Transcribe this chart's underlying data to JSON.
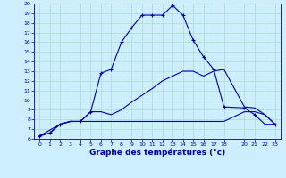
{
  "background_color": "#cceeff",
  "grid_color": "#aaddcc",
  "line_color": "#0000aa",
  "x_label": "Graphe des températures (°c)",
  "xlim": [
    -0.5,
    23.5
  ],
  "ylim": [
    6,
    20
  ],
  "yticks": [
    6,
    7,
    8,
    9,
    10,
    11,
    12,
    13,
    14,
    15,
    16,
    17,
    18,
    19,
    20
  ],
  "xticks": [
    0,
    1,
    2,
    3,
    4,
    5,
    6,
    7,
    8,
    9,
    10,
    11,
    12,
    13,
    14,
    15,
    16,
    17,
    18,
    20,
    21,
    22,
    23
  ],
  "line1_x": [
    0,
    1,
    2,
    3,
    4,
    5,
    6,
    7,
    8,
    9,
    10,
    11,
    12,
    13,
    14,
    15,
    16,
    17,
    18,
    20,
    21,
    22,
    23
  ],
  "line1_y": [
    6.3,
    6.6,
    7.5,
    7.8,
    7.8,
    8.8,
    12.8,
    13.2,
    16.0,
    17.5,
    18.8,
    18.8,
    18.8,
    19.8,
    18.8,
    16.2,
    14.5,
    13.2,
    9.3,
    9.2,
    8.5,
    7.5,
    7.5
  ],
  "line2_x": [
    0,
    1,
    2,
    3,
    4,
    5,
    6,
    7,
    8,
    9,
    10,
    11,
    12,
    13,
    14,
    15,
    16,
    17,
    18,
    20,
    21,
    22,
    23
  ],
  "line2_y": [
    6.3,
    6.6,
    7.5,
    7.8,
    7.8,
    8.8,
    8.8,
    8.5,
    9.0,
    9.8,
    10.5,
    11.2,
    12.0,
    12.5,
    13.0,
    13.0,
    12.5,
    13.0,
    13.2,
    9.3,
    9.2,
    8.5,
    7.5
  ],
  "line3_x": [
    0,
    2,
    3,
    4,
    5,
    6,
    7,
    8,
    9,
    10,
    11,
    12,
    13,
    14,
    15,
    16,
    17,
    18,
    20,
    21,
    22,
    23
  ],
  "line3_y": [
    6.3,
    7.5,
    7.8,
    7.8,
    7.8,
    7.8,
    7.8,
    7.8,
    7.8,
    7.8,
    7.8,
    7.8,
    7.8,
    7.8,
    7.8,
    7.8,
    7.8,
    7.8,
    8.8,
    8.8,
    8.5,
    7.5
  ]
}
